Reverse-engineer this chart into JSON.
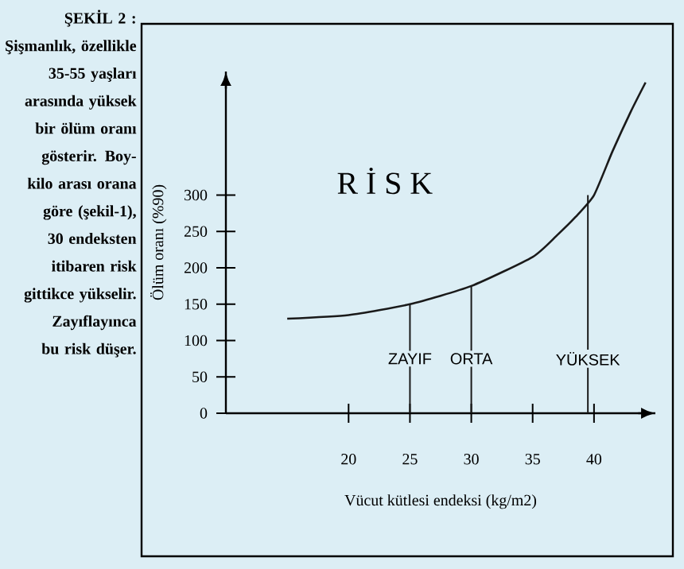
{
  "chart_data": {
    "type": "line",
    "title": "ŞEKİL 2 :",
    "annotations": [
      "Şişmanlık, özellikle 35-55 yaşları arasında yüksek bir ölüm oranı gösterir. Boy-kilo arası orana göre (şekil-1), 30 endeksten itibaren risk gittikce yükselir. Zayıflayınca bu risk düşer.",
      "R İ S K",
      {
        "text": "ZAYIF",
        "x": 25,
        "y": 75
      },
      {
        "text": "ORTA",
        "x": 30,
        "y": 75
      },
      {
        "text": "YÜKSEK",
        "x": 39.5,
        "y": 75
      }
    ],
    "xlabel": "Vücut kütlesi endeksi (kg/m2)",
    "ylabel": "Ölüm oranı (%90)",
    "series": [
      {
        "color": "#1a1a1a",
        "x": [
          15,
          20,
          25,
          30,
          35,
          37,
          38.5,
          40,
          41.5,
          43,
          44.2
        ],
        "values": [
          130,
          135,
          150,
          175,
          215,
          245,
          270,
          300,
          360,
          415,
          455
        ]
      },
      {
        "type": "bar",
        "color": "#1a1a1a",
        "x": [
          25,
          30,
          39.5
        ],
        "values": [
          150,
          175,
          300
        ]
      }
    ],
    "xlim": [
      10,
      45
    ],
    "ylim": [
      0,
      470
    ],
    "xticks": [
      20,
      25,
      30,
      35,
      40
    ],
    "yticks": [
      0,
      50,
      100,
      150,
      200,
      250,
      300
    ]
  }
}
